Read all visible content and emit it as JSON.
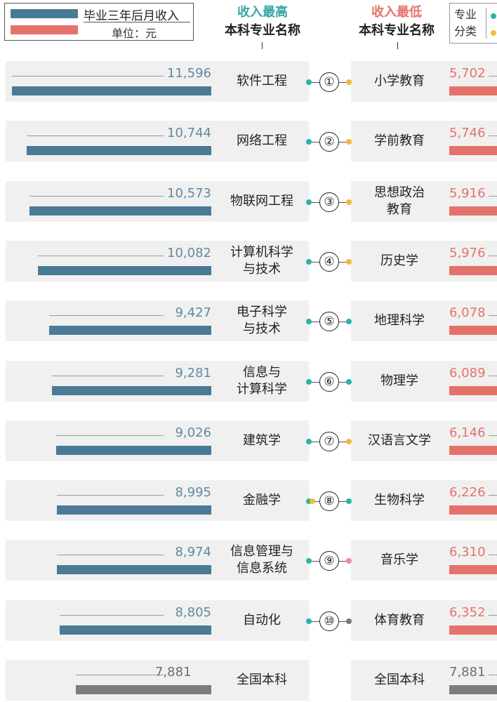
{
  "legend": {
    "label": "毕业三年后月收入",
    "unit": "单位：元"
  },
  "headers": {
    "high_title": "收入最高",
    "high_subtitle": "本科专业名称",
    "low_title": "收入最低",
    "low_subtitle": "本科专业名称"
  },
  "category_legend": {
    "label": "专业分类"
  },
  "colors": {
    "high_bar": "#4a7a96",
    "low_bar": "#e5726a",
    "national_bar": "#7d7d7d",
    "teal": "#2bb3a8",
    "yellow": "#f0bc3a",
    "pink": "#e98aa0",
    "gray": "#777777"
  },
  "chart_data": {
    "type": "bar",
    "title": "毕业三年后月收入",
    "unit": "元",
    "ranks": [
      "①",
      "②",
      "③",
      "④",
      "⑤",
      "⑥",
      "⑦",
      "⑧",
      "⑨",
      "⑩"
    ],
    "high": [
      {
        "name": "软件工程",
        "value": 11596,
        "value_label": "11,596",
        "dot": "teal"
      },
      {
        "name": "网络工程",
        "value": 10744,
        "value_label": "10,744",
        "dot": "teal"
      },
      {
        "name": "物联网工程",
        "value": 10573,
        "value_label": "10,573",
        "dot": "teal"
      },
      {
        "name": "计算机科学\n与技术",
        "value": 10082,
        "value_label": "10,082",
        "dot": "teal"
      },
      {
        "name": "电子科学\n与技术",
        "value": 9427,
        "value_label": "9,427",
        "dot": "teal"
      },
      {
        "name": "信息与\n计算科学",
        "value": 9281,
        "value_label": "9,281",
        "dot": "teal"
      },
      {
        "name": "建筑学",
        "value": 9026,
        "value_label": "9,026",
        "dot": "teal"
      },
      {
        "name": "金融学",
        "value": 8995,
        "value_label": "8,995",
        "dot": "teal+yellow"
      },
      {
        "name": "信息管理与\n信息系统",
        "value": 8974,
        "value_label": "8,974",
        "dot": "teal"
      },
      {
        "name": "自动化",
        "value": 8805,
        "value_label": "8,805",
        "dot": "teal"
      }
    ],
    "low": [
      {
        "name": "小学教育",
        "value": 5702,
        "value_label": "5,702",
        "dot": "yellow"
      },
      {
        "name": "学前教育",
        "value": 5746,
        "value_label": "5,746",
        "dot": "yellow"
      },
      {
        "name": "思想政治\n教育",
        "value": 5916,
        "value_label": "5,916",
        "dot": "yellow"
      },
      {
        "name": "历史学",
        "value": 5976,
        "value_label": "5,976",
        "dot": "yellow"
      },
      {
        "name": "地理科学",
        "value": 6078,
        "value_label": "6,078",
        "dot": "teal"
      },
      {
        "name": "物理学",
        "value": 6089,
        "value_label": "6,089",
        "dot": "teal"
      },
      {
        "name": "汉语言文学",
        "value": 6146,
        "value_label": "6,146",
        "dot": "yellow"
      },
      {
        "name": "生物科学",
        "value": 6226,
        "value_label": "6,226",
        "dot": "teal"
      },
      {
        "name": "音乐学",
        "value": 6310,
        "value_label": "6,310",
        "dot": "pink"
      },
      {
        "name": "体育教育",
        "value": 6352,
        "value_label": "6,352",
        "dot": "gray"
      }
    ],
    "national": {
      "name": "全国本科",
      "value": 7881,
      "value_label": "7,881"
    }
  }
}
